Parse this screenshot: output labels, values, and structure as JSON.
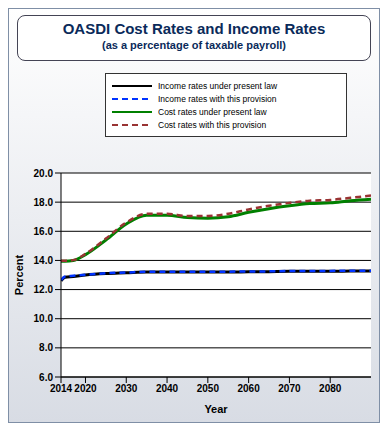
{
  "chart_data": {
    "type": "line",
    "title": "OASDI Cost Rates and Income Rates",
    "subtitle": "(as a percentage of taxable payroll)",
    "x_label": "Year",
    "y_label": "Percent",
    "x": [
      2014,
      2015,
      2017,
      2020,
      2025,
      2030,
      2035,
      2040,
      2045,
      2050,
      2055,
      2060,
      2065,
      2070,
      2075,
      2080,
      2085,
      2090
    ],
    "series": [
      {
        "name": "Income rates under present law",
        "color": "#000000",
        "line_style": "solid",
        "values": [
          12.6,
          12.85,
          12.9,
          13.0,
          13.1,
          13.15,
          13.2,
          13.2,
          13.2,
          13.2,
          13.2,
          13.22,
          13.23,
          13.25,
          13.25,
          13.25,
          13.27,
          13.28
        ]
      },
      {
        "name": "Income rates with this provision",
        "color": "#0033ff",
        "line_style": "dashed",
        "values": [
          12.65,
          12.9,
          12.95,
          13.02,
          13.12,
          13.17,
          13.22,
          13.22,
          13.22,
          13.22,
          13.23,
          13.24,
          13.25,
          13.27,
          13.27,
          13.28,
          13.3,
          13.3
        ]
      },
      {
        "name": "Cost rates under present law",
        "color": "#008000",
        "line_style": "solid",
        "values": [
          13.95,
          13.95,
          14.0,
          14.4,
          15.4,
          16.5,
          17.1,
          17.1,
          16.95,
          16.9,
          17.0,
          17.3,
          17.55,
          17.75,
          17.9,
          17.95,
          18.1,
          18.2
        ]
      },
      {
        "name": "Cost rates with this provision",
        "color": "#993333",
        "line_style": "dashed",
        "values": [
          13.97,
          13.97,
          14.02,
          14.45,
          15.5,
          16.6,
          17.2,
          17.2,
          17.05,
          17.05,
          17.2,
          17.5,
          17.75,
          17.95,
          18.1,
          18.15,
          18.3,
          18.45
        ]
      }
    ],
    "xlim": [
      2014,
      2090
    ],
    "xticks": [
      2014,
      2020,
      2030,
      2040,
      2050,
      2060,
      2070,
      2080
    ],
    "ylim": [
      6,
      20
    ],
    "yticks": [
      {
        "value": 6,
        "label": "6.0"
      },
      {
        "value": 8,
        "label": "8.0"
      },
      {
        "value": 10,
        "label": "10.0"
      },
      {
        "value": 12,
        "label": "12.0"
      },
      {
        "value": 14,
        "label": "14.0"
      },
      {
        "value": 16,
        "label": "16.0"
      },
      {
        "value": 18,
        "label": "18.0"
      },
      {
        "value": 20,
        "label": "20.0"
      }
    ],
    "grid": true,
    "legend": "top"
  }
}
